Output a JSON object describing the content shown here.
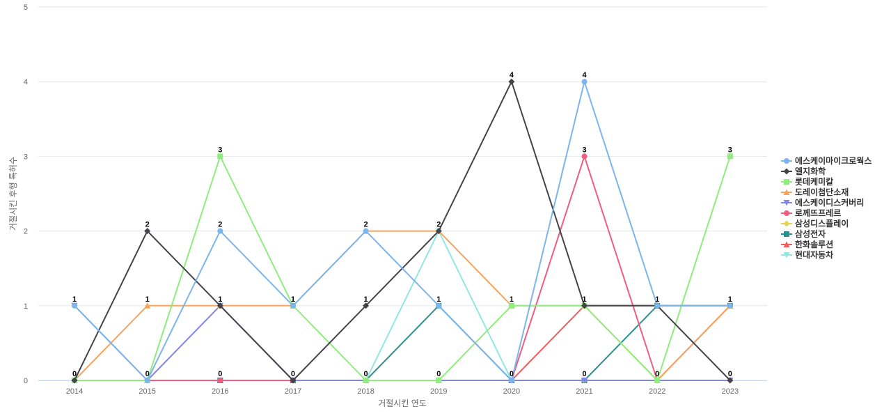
{
  "chart_data": {
    "type": "line",
    "title": "",
    "xlabel": "거절시킨 연도",
    "ylabel": "거절시킨 후행 특허수",
    "categories": [
      "2014",
      "2015",
      "2016",
      "2017",
      "2018",
      "2019",
      "2020",
      "2021",
      "2022",
      "2023"
    ],
    "ylim": [
      0,
      5
    ],
    "yticks": [
      "0",
      "1",
      "2",
      "3",
      "4",
      "5"
    ],
    "grid": true,
    "legend_position": "right",
    "series": [
      {
        "name": "에스케이마이크로웍스",
        "color": "#7cb5ec",
        "marker": "circle",
        "values": [
          1,
          0,
          2,
          1,
          2,
          1,
          0,
          4,
          1,
          1
        ]
      },
      {
        "name": "엘지화학",
        "color": "#434348",
        "marker": "diamond",
        "values": [
          0,
          2,
          1,
          0,
          1,
          2,
          4,
          1,
          1,
          0
        ]
      },
      {
        "name": "롯데케미칼",
        "color": "#90ed7d",
        "marker": "square",
        "values": [
          0,
          0,
          3,
          1,
          0,
          0,
          1,
          1,
          0,
          3
        ]
      },
      {
        "name": "도레이첨단소재",
        "color": "#f7a35c",
        "marker": "triangle",
        "values": [
          0,
          1,
          1,
          1,
          2,
          2,
          1,
          1,
          0,
          1
        ]
      },
      {
        "name": "에스케이디스커버리",
        "color": "#8085e9",
        "marker": "triangle-down",
        "values": [
          1,
          0,
          1,
          0,
          0,
          0,
          0,
          0,
          0,
          0
        ]
      },
      {
        "name": "로께뜨프레르",
        "color": "#f15c80",
        "marker": "circle",
        "values": [
          0,
          0,
          0,
          0,
          0,
          0,
          0,
          3,
          0,
          1
        ]
      },
      {
        "name": "삼성디스플레이",
        "color": "#e4d354",
        "marker": "diamond",
        "values": [
          0,
          0,
          0,
          0,
          0,
          0,
          0,
          0,
          0,
          0
        ]
      },
      {
        "name": "삼성전자",
        "color": "#2b908f",
        "marker": "square",
        "values": [
          0,
          0,
          0,
          0,
          0,
          1,
          0,
          0,
          1,
          1
        ]
      },
      {
        "name": "한화솔루션",
        "color": "#f45b5b",
        "marker": "triangle",
        "values": [
          0,
          0,
          0,
          0,
          0,
          0,
          0,
          1,
          1,
          1
        ]
      },
      {
        "name": "현대자동차",
        "color": "#91e8e1",
        "marker": "triangle-down",
        "values": [
          0,
          0,
          0,
          0,
          0,
          2,
          0,
          0,
          0,
          0
        ]
      }
    ],
    "data_labels": [
      {
        "category": "2014",
        "values": [
          "1",
          "0"
        ]
      },
      {
        "category": "2015",
        "values": [
          "2",
          "1",
          "0"
        ]
      },
      {
        "category": "2016",
        "values": [
          "3",
          "2",
          "1",
          "0"
        ]
      },
      {
        "category": "2017",
        "values": [
          "1",
          "0"
        ]
      },
      {
        "category": "2018",
        "values": [
          "2",
          "1",
          "0"
        ]
      },
      {
        "category": "2019",
        "values": [
          "2",
          "1",
          "0"
        ]
      },
      {
        "category": "2020",
        "values": [
          "4",
          "1",
          "0"
        ]
      },
      {
        "category": "2021",
        "values": [
          "4",
          "3",
          "1",
          "0"
        ]
      },
      {
        "category": "2022",
        "values": [
          "1",
          "0"
        ]
      },
      {
        "category": "2023",
        "values": [
          "3",
          "1",
          "0"
        ]
      }
    ]
  }
}
